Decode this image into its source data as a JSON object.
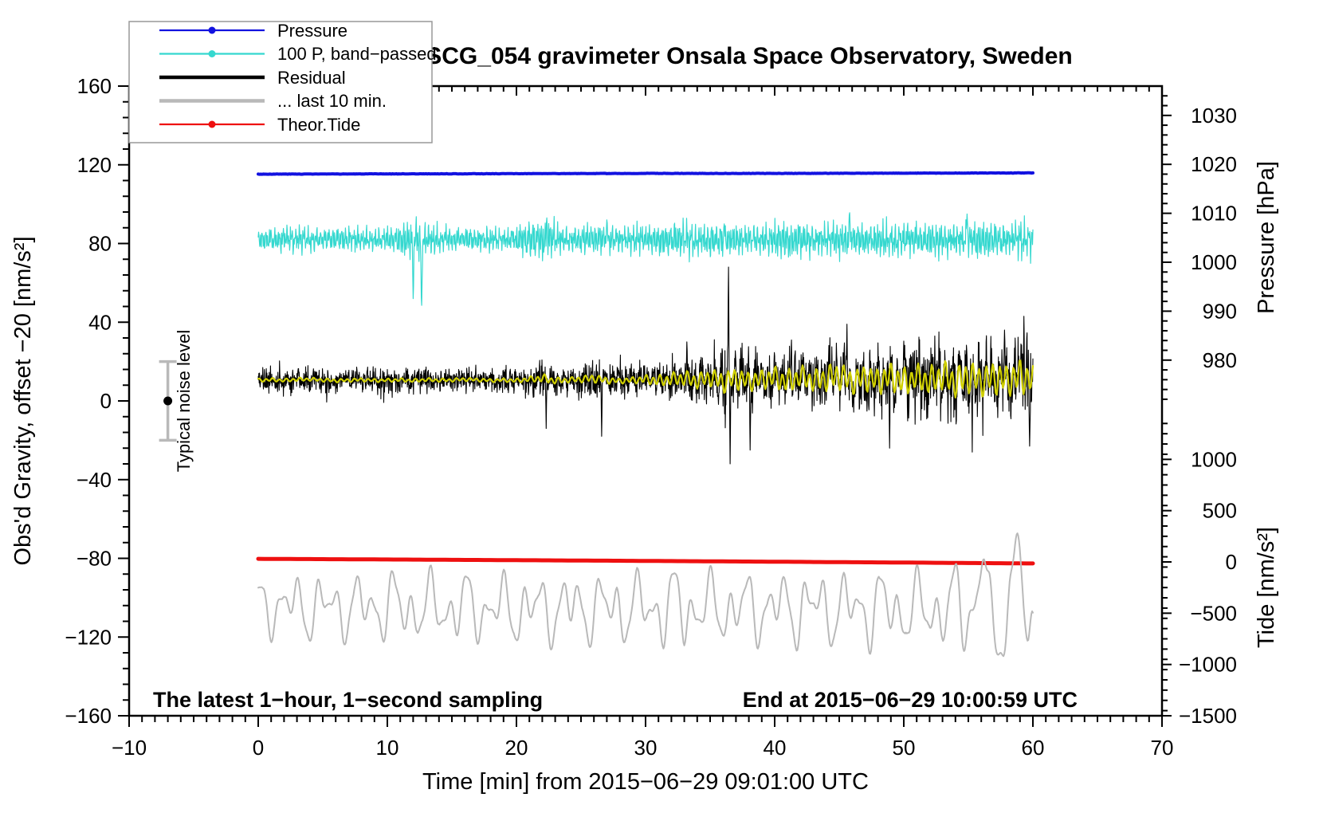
{
  "title": "SCG_054 gravimeter Onsala Space Observatory, Sweden",
  "annotations": {
    "sampling_note": "The latest 1−hour, 1−second sampling",
    "end_note": "End at 2015−06−29 10:00:59 UTC",
    "noise_label": "Typical noise level"
  },
  "legend": {
    "items": [
      {
        "label": "Pressure",
        "color": "#1212e0",
        "marker": true,
        "width": 2.2
      },
      {
        "label": "100 P, band−passed",
        "color": "#35d8cf",
        "marker": true,
        "width": 2.2
      },
      {
        "label": "Residual",
        "color": "#000000",
        "marker": false,
        "width": 4.5
      },
      {
        "label": "... last 10 min.",
        "color": "#b9b9b9",
        "marker": false,
        "width": 4.5
      },
      {
        "label": "Theor.Tide",
        "color": "#ee1010",
        "marker": true,
        "width": 2.2
      }
    ]
  },
  "axes": {
    "left_title": "Obs'd Gravity, offset −20 [nm/s²]",
    "bottom_title": "Time [min] from 2015−06−29 09:01:00 UTC",
    "right_top_title": "Pressure [hPa]",
    "right_bottom_title": "Tide [nm/s²]"
  },
  "noise_marker": {
    "t_min": -7,
    "value": 0,
    "error": 20,
    "bar_color": "#b9b9b9",
    "dot_color": "#000000"
  },
  "chart_data": {
    "type": "line",
    "title": "SCG_054 gravimeter Onsala Space Observatory, Sweden",
    "xlabel": "Time [min] from 2015−06−29 09:01:00 UTC",
    "x_range": [
      -10,
      70
    ],
    "x_major_ticks": [
      -10,
      0,
      10,
      20,
      30,
      40,
      50,
      60,
      70
    ],
    "x_minor_step": 1,
    "gravity_axis": {
      "label": "Obs'd Gravity, offset −20 [nm/s²]",
      "range": [
        -160,
        160
      ],
      "major_ticks": [
        160,
        120,
        80,
        40,
        0,
        -40,
        -80,
        -120,
        -160
      ],
      "minor_step": 8
    },
    "pressure_axis": {
      "label": "Pressure [hPa]",
      "major_ticks": [
        1030,
        1020,
        1010,
        1000,
        990,
        980
      ],
      "minor_step": 2
    },
    "tide_axis": {
      "label": "Tide [nm/s²]",
      "major_ticks": [
        1000,
        500,
        0,
        -500,
        -1000,
        -1500
      ],
      "minor_step": 100
    },
    "data_span_min": [
      0,
      60
    ],
    "series": [
      {
        "name": "pressure",
        "legend": "Pressure",
        "axis": "pressure",
        "color": "#1212e0",
        "width": 4,
        "t_nodes": [
          0,
          10,
          20,
          30,
          40,
          50,
          60
        ],
        "values_hPa": [
          1018.0,
          1018.05,
          1018.1,
          1018.15,
          1018.15,
          1018.2,
          1018.25
        ],
        "jitter": 0.07
      },
      {
        "name": "pressure-bandpassed",
        "legend": "100 P, band−passed",
        "axis": "gravity",
        "color": "#35d8cf",
        "width": 1.2,
        "center": 82,
        "amp_per_min": [
          6,
          6,
          6.5,
          7,
          6.5,
          6,
          6,
          6.5,
          6,
          6,
          6.5,
          8,
          11,
          9,
          7,
          6.5,
          6,
          6,
          6.5,
          6,
          7.5,
          9,
          11,
          9,
          7,
          7,
          8,
          7.5,
          6.5,
          7,
          7,
          8,
          9,
          9.5,
          8,
          9,
          8.5,
          7.5,
          8,
          8,
          9,
          9.5,
          9,
          8.5,
          9,
          9.5,
          8.5,
          8,
          9,
          9.5,
          9,
          8.5,
          9,
          8.5,
          8,
          9,
          9.5,
          8.5,
          9,
          9.5,
          9
        ],
        "spikes": [
          {
            "t": 12.0,
            "v": 52
          },
          {
            "t": 12.65,
            "v": 47
          },
          {
            "t": 22.35,
            "v": 93
          },
          {
            "t": 27.0,
            "v": 92
          },
          {
            "t": 36.1,
            "v": 90
          },
          {
            "t": 45.8,
            "v": 96
          },
          {
            "t": 54.9,
            "v": 95
          }
        ]
      },
      {
        "name": "residual",
        "legend": "Residual",
        "axis": "gravity",
        "color": "#000000",
        "width": 1.1,
        "amp_per_min": [
          7,
          7,
          7,
          7,
          7,
          7,
          7,
          7,
          7,
          7,
          7,
          7,
          7,
          7,
          7,
          7,
          7,
          7,
          7,
          7,
          7,
          8,
          10,
          8,
          7,
          8,
          9.5,
          8,
          8,
          8,
          8,
          9,
          10,
          12,
          11,
          12,
          15,
          14,
          13,
          13,
          13,
          14,
          13,
          13,
          15,
          16,
          14,
          15,
          16,
          15,
          16,
          17,
          17,
          18,
          18,
          17,
          19,
          18,
          17,
          20,
          17
        ],
        "spikes": [
          {
            "t": 22.3,
            "v": -14
          },
          {
            "t": 26.6,
            "v": -18
          },
          {
            "t": 33.2,
            "v": 30
          },
          {
            "t": 36.42,
            "v": 69
          },
          {
            "t": 36.55,
            "v": -32
          },
          {
            "t": 38.1,
            "v": -25
          },
          {
            "t": 41.3,
            "v": 31
          },
          {
            "t": 45.6,
            "v": 39
          },
          {
            "t": 48.9,
            "v": -24
          },
          {
            "t": 52.4,
            "v": 33
          },
          {
            "t": 55.3,
            "v": -26
          },
          {
            "t": 57.8,
            "v": 36
          },
          {
            "t": 59.3,
            "v": 43
          },
          {
            "t": 59.75,
            "v": -23
          }
        ]
      },
      {
        "name": "residual-smoothed",
        "legend": "",
        "axis": "gravity",
        "color": "#d0d000",
        "width": 2.2,
        "values_per_min": [
          10.5,
          10.8,
          10.4,
          10.9,
          11,
          10.6,
          10.3,
          10.5,
          10.8,
          10.4,
          10.5,
          10.7,
          10.3,
          10.8,
          10.5,
          10.6,
          11,
          10.7,
          10.4,
          10.6,
          10.3,
          11,
          11.5,
          10.2,
          10.6,
          11,
          11.5,
          10.4,
          10.2,
          10.6,
          11,
          10.2,
          11,
          11.5,
          10,
          12,
          9.5,
          11.5,
          10,
          11,
          12,
          9.5,
          12.5,
          10,
          11.5,
          13,
          9.5,
          12,
          10,
          12.5,
          9.5,
          12,
          10,
          13,
          9.5,
          12.5,
          10,
          12,
          10.5,
          12.5,
          11
        ],
        "osc_amp_per_min": [
          0.8,
          0.8,
          0.8,
          0.8,
          0.8,
          0.8,
          0.8,
          0.8,
          0.8,
          0.8,
          0.8,
          0.8,
          0.8,
          0.8,
          0.8,
          0.8,
          0.8,
          0.8,
          0.8,
          0.8,
          1,
          1.2,
          2,
          1.5,
          1.2,
          1.5,
          2,
          1.5,
          1.2,
          1.5,
          2,
          2.5,
          3,
          3.5,
          3.5,
          4,
          5,
          5,
          4.5,
          4.5,
          5,
          5.5,
          5,
          5,
          6,
          6.5,
          5.5,
          6,
          6,
          6.5,
          6.5,
          6,
          6.5,
          7,
          7,
          7.5,
          7,
          7.5,
          7,
          8,
          7
        ]
      },
      {
        "name": "residual-last-10min",
        "legend": "... last 10 min.",
        "axis": "gravity",
        "color": "#b9b9b9",
        "width": 2,
        "center_nodes": [
          -104,
          -105,
          -106,
          -105,
          -105,
          -106,
          -105
        ],
        "amp_per_min": [
          14,
          16,
          15,
          17,
          19,
          16,
          15,
          19,
          17,
          16,
          19,
          21,
          18,
          20,
          16,
          19,
          21,
          18,
          16,
          19,
          18,
          21,
          19,
          18,
          21,
          19,
          18,
          20,
          21,
          18,
          19,
          23,
          21,
          25,
          19,
          18,
          21,
          19,
          18,
          21,
          19,
          18,
          21,
          23,
          19,
          21,
          18,
          19,
          23,
          19,
          21,
          19,
          22,
          21,
          24,
          26,
          25,
          27,
          26,
          24,
          18
        ],
        "spikes": [
          {
            "t": 56.2,
            "v": -80,
            "w": 0.45
          },
          {
            "t": 57.3,
            "v": -129,
            "w": 0.5
          },
          {
            "t": 58.8,
            "v": -67,
            "w": 0.45
          },
          {
            "t": 59.6,
            "v": -122,
            "w": 0.35
          }
        ]
      },
      {
        "name": "theoretical-tide",
        "legend": "Theor.Tide",
        "axis": "tide",
        "color": "#ee1010",
        "width": 5,
        "t_nodes": [
          0,
          10,
          20,
          30,
          40,
          50,
          60
        ],
        "values_nms2": [
          30,
          24,
          17,
          10,
          2,
          -6,
          -15
        ]
      }
    ]
  }
}
